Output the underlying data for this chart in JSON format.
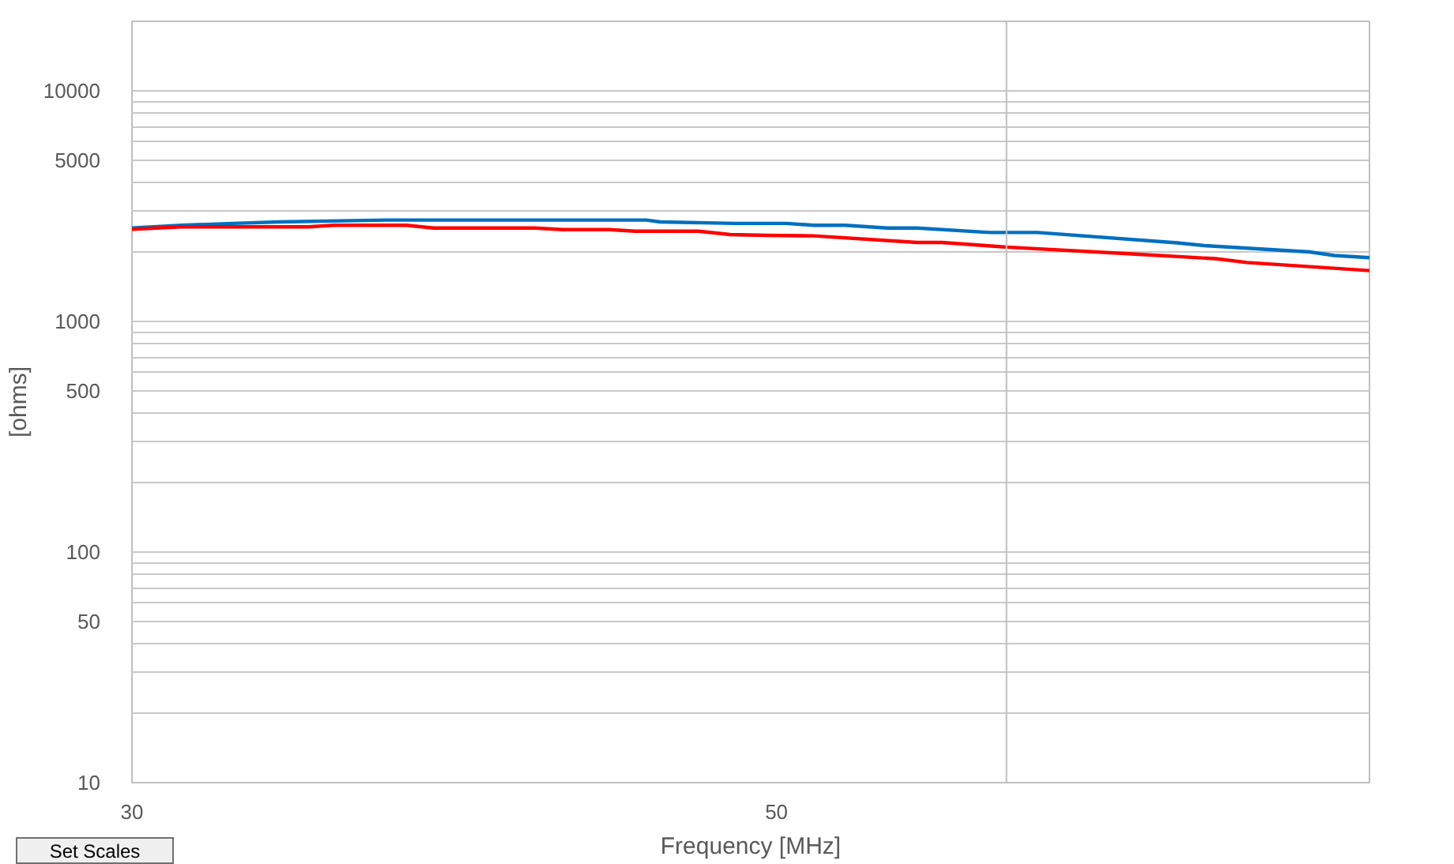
{
  "chart_data": {
    "type": "line",
    "xlabel": "Frequency [MHz]",
    "ylabel": "[ohms]",
    "log": "xy",
    "xlim": [
      30,
      80
    ],
    "xticks": [
      30,
      50
    ],
    "ylim": [
      10,
      20000
    ],
    "yticks": [
      10,
      {
        "value": 20,
        "label": null
      },
      {
        "value": 30,
        "label": null
      },
      {
        "value": 40,
        "label": null
      },
      50,
      {
        "value": 60,
        "label": null
      },
      {
        "value": 70,
        "label": null
      },
      {
        "value": 80,
        "label": null
      },
      {
        "value": 90,
        "label": null
      },
      100,
      {
        "value": 200,
        "label": null
      },
      {
        "value": 300,
        "label": null
      },
      {
        "value": 400,
        "label": null
      },
      500,
      {
        "value": 600,
        "label": null
      },
      {
        "value": 700,
        "label": null
      },
      {
        "value": 800,
        "label": null
      },
      {
        "value": 900,
        "label": null
      },
      1000,
      {
        "value": 2000,
        "label": null
      },
      {
        "value": 3000,
        "label": null
      },
      {
        "value": 4000,
        "label": null
      },
      5000,
      {
        "value": 6000,
        "label": null
      },
      {
        "value": 7000,
        "label": null
      },
      {
        "value": 8000,
        "label": null
      },
      {
        "value": 9000,
        "label": null
      },
      10000
    ],
    "grid": "y",
    "marker": "none",
    "line_style": "solid",
    "ref_lines": [
      {
        "axis": "x",
        "value": 60,
        "color": "#bfbfbf"
      }
    ],
    "annotations": [
      "Set Scales"
    ],
    "series": [
      {
        "color": "#0070c0",
        "x": [
          30,
          31.2,
          32.5,
          33.7,
          36.7,
          45.1,
          45.6,
          48.4,
          50.4,
          51.5,
          52.8,
          54.6,
          55.9,
          59.2,
          61.5,
          68.7,
          70.2,
          76.3,
          77.8,
          80
        ],
        "values": [
          2540,
          2610,
          2660,
          2700,
          2750,
          2750,
          2700,
          2660,
          2660,
          2610,
          2610,
          2540,
          2540,
          2430,
          2430,
          2190,
          2130,
          2000,
          1930,
          1890
        ]
      },
      {
        "color": "#ff0000",
        "x": [
          30,
          31.2,
          34.5,
          35.2,
          37.3,
          38.1,
          41.3,
          42.2,
          43.8,
          44.7,
          47.0,
          48.2,
          49.6,
          51.5,
          55.9,
          57.0,
          60,
          65.9,
          70.8,
          72.6,
          80
        ],
        "values": [
          2510,
          2570,
          2570,
          2610,
          2610,
          2540,
          2540,
          2500,
          2500,
          2460,
          2460,
          2380,
          2360,
          2350,
          2200,
          2200,
          2100,
          1970,
          1870,
          1800,
          1660
        ]
      }
    ]
  }
}
